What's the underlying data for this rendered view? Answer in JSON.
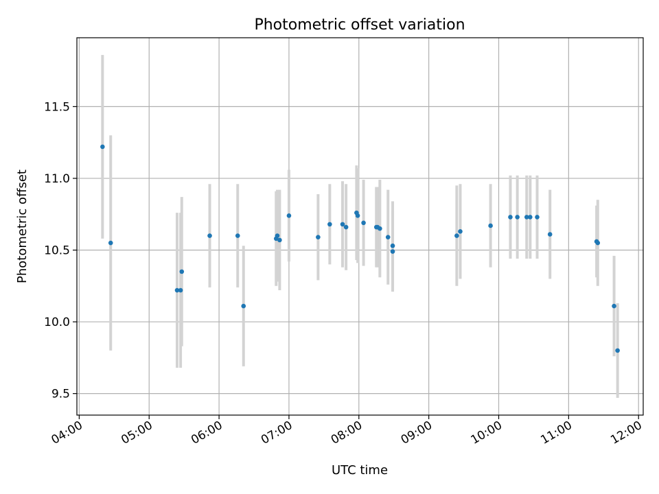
{
  "chart_data": {
    "type": "scatter",
    "title": "Photometric offset variation",
    "xlabel": "UTC time",
    "ylabel": "Photometric offset",
    "x_ticks": [
      "04:00",
      "05:00",
      "06:00",
      "07:00",
      "08:00",
      "09:00",
      "10:00",
      "11:00",
      "12:00"
    ],
    "y_ticks": [
      "9.5",
      "10.0",
      "10.5",
      "11.0",
      "11.5"
    ],
    "xlim": [
      "03:58",
      "12:04"
    ],
    "ylim": [
      9.35,
      11.98
    ],
    "grid": true,
    "colors": {
      "point": "#1f77b4",
      "errorbar": "#d3d3d3",
      "grid": "#b0b0b0"
    },
    "points": [
      {
        "t": "04:20",
        "y": 11.22,
        "err": 0.64
      },
      {
        "t": "04:27",
        "y": 10.55,
        "err": 0.75
      },
      {
        "t": "05:24",
        "y": 10.22,
        "err": 0.54
      },
      {
        "t": "05:27",
        "y": 10.22,
        "err": 0.54
      },
      {
        "t": "05:28",
        "y": 10.35,
        "err": 0.52
      },
      {
        "t": "05:52",
        "y": 10.6,
        "err": 0.36
      },
      {
        "t": "06:16",
        "y": 10.6,
        "err": 0.36
      },
      {
        "t": "06:21",
        "y": 10.11,
        "err": 0.42
      },
      {
        "t": "06:49",
        "y": 10.58,
        "err": 0.33
      },
      {
        "t": "06:50",
        "y": 10.6,
        "err": 0.32
      },
      {
        "t": "06:52",
        "y": 10.57,
        "err": 0.35
      },
      {
        "t": "07:00",
        "y": 10.74,
        "err": 0.32
      },
      {
        "t": "07:25",
        "y": 10.59,
        "err": 0.3
      },
      {
        "t": "07:35",
        "y": 10.68,
        "err": 0.28
      },
      {
        "t": "07:46",
        "y": 10.68,
        "err": 0.3
      },
      {
        "t": "07:49",
        "y": 10.66,
        "err": 0.3
      },
      {
        "t": "07:58",
        "y": 10.76,
        "err": 0.33
      },
      {
        "t": "07:59",
        "y": 10.74,
        "err": 0.33
      },
      {
        "t": "08:04",
        "y": 10.69,
        "err": 0.3
      },
      {
        "t": "08:15",
        "y": 10.66,
        "err": 0.28
      },
      {
        "t": "08:16",
        "y": 10.66,
        "err": 0.28
      },
      {
        "t": "08:18",
        "y": 10.65,
        "err": 0.34
      },
      {
        "t": "08:25",
        "y": 10.59,
        "err": 0.33
      },
      {
        "t": "08:29",
        "y": 10.49,
        "err": 0.28
      },
      {
        "t": "08:29",
        "y": 10.53,
        "err": 0.31
      },
      {
        "t": "09:24",
        "y": 10.6,
        "err": 0.35
      },
      {
        "t": "09:27",
        "y": 10.63,
        "err": 0.33
      },
      {
        "t": "09:53",
        "y": 10.67,
        "err": 0.29
      },
      {
        "t": "10:10",
        "y": 10.73,
        "err": 0.29
      },
      {
        "t": "10:16",
        "y": 10.73,
        "err": 0.29
      },
      {
        "t": "10:24",
        "y": 10.73,
        "err": 0.29
      },
      {
        "t": "10:27",
        "y": 10.73,
        "err": 0.29
      },
      {
        "t": "10:33",
        "y": 10.73,
        "err": 0.29
      },
      {
        "t": "10:44",
        "y": 10.61,
        "err": 0.31
      },
      {
        "t": "11:24",
        "y": 10.56,
        "err": 0.25
      },
      {
        "t": "11:25",
        "y": 10.55,
        "err": 0.3
      },
      {
        "t": "11:39",
        "y": 10.11,
        "err": 0.35
      },
      {
        "t": "11:42",
        "y": 9.8,
        "err": 0.33
      }
    ]
  }
}
